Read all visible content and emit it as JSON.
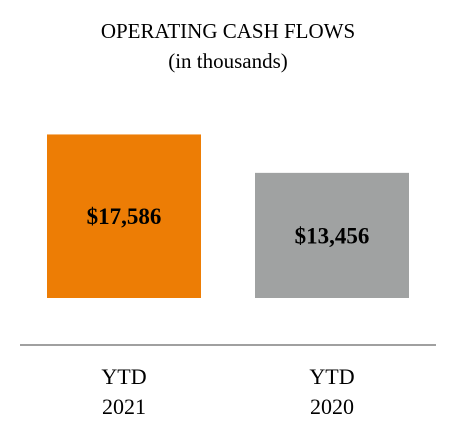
{
  "chart_data": {
    "type": "bar",
    "title": "OPERATING CASH FLOWS",
    "subtitle": "(in thousands)",
    "categories": [
      {
        "line1": "YTD",
        "line2": "2021"
      },
      {
        "line1": "YTD",
        "line2": "2020"
      }
    ],
    "values": [
      17586,
      13456
    ],
    "data_labels": [
      "$17,586",
      "$13,456"
    ],
    "colors": [
      "#ED7D05",
      "#A0A2A2"
    ],
    "axis_color": "#A0A0A0",
    "ylim": [
      0,
      20000
    ],
    "grid": false,
    "legend": "none"
  }
}
